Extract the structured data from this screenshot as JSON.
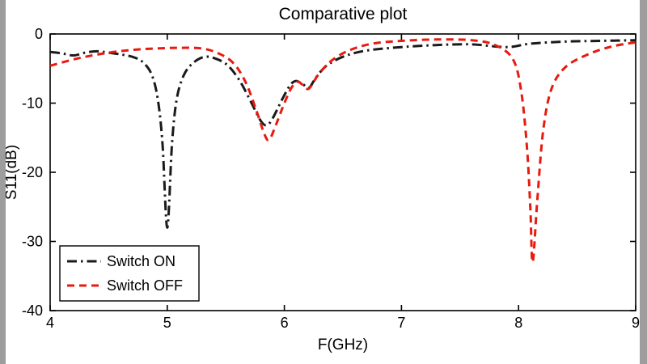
{
  "figure": {
    "background": "#ffffff",
    "matte_color": "#9d9d9d"
  },
  "chart_data": {
    "type": "line",
    "title": "Comparative plot",
    "xlabel": "F(GHz)",
    "ylabel": "S11(dB)",
    "xlim": [
      4,
      9
    ],
    "ylim": [
      -40,
      0
    ],
    "xticks": [
      4,
      5,
      6,
      7,
      8,
      9
    ],
    "yticks": [
      0,
      -10,
      -20,
      -30,
      -40
    ],
    "grid": false,
    "box": true,
    "tick_direction": "in",
    "legend_position": "lower-left",
    "axis_color": "#000000",
    "series": [
      {
        "name": "Switch ON",
        "color": "#1a1a1a",
        "line_style": "dash-dot",
        "line_width": 3,
        "points": [
          [
            4.0,
            -2.6
          ],
          [
            4.1,
            -2.8
          ],
          [
            4.2,
            -3.1
          ],
          [
            4.3,
            -2.7
          ],
          [
            4.4,
            -2.5
          ],
          [
            4.5,
            -2.7
          ],
          [
            4.62,
            -3.0
          ],
          [
            4.72,
            -3.4
          ],
          [
            4.8,
            -4.2
          ],
          [
            4.87,
            -6.0
          ],
          [
            4.92,
            -9.5
          ],
          [
            4.96,
            -16.0
          ],
          [
            5.0,
            -28.0
          ],
          [
            5.04,
            -16.0
          ],
          [
            5.08,
            -9.5
          ],
          [
            5.14,
            -6.0
          ],
          [
            5.22,
            -4.2
          ],
          [
            5.32,
            -3.3
          ],
          [
            5.42,
            -3.6
          ],
          [
            5.52,
            -4.6
          ],
          [
            5.62,
            -6.8
          ],
          [
            5.72,
            -10.0
          ],
          [
            5.8,
            -12.6
          ],
          [
            5.85,
            -13.2
          ],
          [
            5.9,
            -12.2
          ],
          [
            5.98,
            -9.5
          ],
          [
            6.05,
            -7.4
          ],
          [
            6.1,
            -6.8
          ],
          [
            6.16,
            -7.3
          ],
          [
            6.21,
            -7.8
          ],
          [
            6.27,
            -6.3
          ],
          [
            6.36,
            -4.6
          ],
          [
            6.5,
            -3.3
          ],
          [
            6.7,
            -2.4
          ],
          [
            7.0,
            -1.9
          ],
          [
            7.3,
            -1.6
          ],
          [
            7.6,
            -1.5
          ],
          [
            7.9,
            -1.9
          ],
          [
            8.1,
            -1.4
          ],
          [
            8.4,
            -1.1
          ],
          [
            8.7,
            -1.0
          ],
          [
            9.0,
            -0.9
          ]
        ]
      },
      {
        "name": "Switch OFF",
        "color": "#e8190f",
        "line_style": "dashed",
        "line_width": 3,
        "points": [
          [
            4.0,
            -4.6
          ],
          [
            4.15,
            -3.9
          ],
          [
            4.3,
            -3.3
          ],
          [
            4.5,
            -2.7
          ],
          [
            4.7,
            -2.3
          ],
          [
            4.9,
            -2.1
          ],
          [
            5.1,
            -2.0
          ],
          [
            5.3,
            -2.1
          ],
          [
            5.45,
            -2.9
          ],
          [
            5.57,
            -4.3
          ],
          [
            5.67,
            -7.0
          ],
          [
            5.76,
            -11.0
          ],
          [
            5.83,
            -14.5
          ],
          [
            5.87,
            -15.3
          ],
          [
            5.92,
            -13.5
          ],
          [
            6.0,
            -10.0
          ],
          [
            6.06,
            -7.8
          ],
          [
            6.11,
            -6.9
          ],
          [
            6.16,
            -7.4
          ],
          [
            6.21,
            -7.9
          ],
          [
            6.29,
            -5.9
          ],
          [
            6.4,
            -3.9
          ],
          [
            6.55,
            -2.4
          ],
          [
            6.75,
            -1.4
          ],
          [
            7.0,
            -1.0
          ],
          [
            7.3,
            -0.8
          ],
          [
            7.6,
            -0.9
          ],
          [
            7.8,
            -1.6
          ],
          [
            7.95,
            -3.6
          ],
          [
            8.02,
            -8.0
          ],
          [
            8.07,
            -16.0
          ],
          [
            8.1,
            -25.0
          ],
          [
            8.12,
            -33.0
          ],
          [
            8.16,
            -24.0
          ],
          [
            8.21,
            -14.0
          ],
          [
            8.28,
            -8.0
          ],
          [
            8.4,
            -4.8
          ],
          [
            8.6,
            -2.9
          ],
          [
            8.8,
            -1.8
          ],
          [
            9.0,
            -1.2
          ]
        ]
      }
    ]
  }
}
